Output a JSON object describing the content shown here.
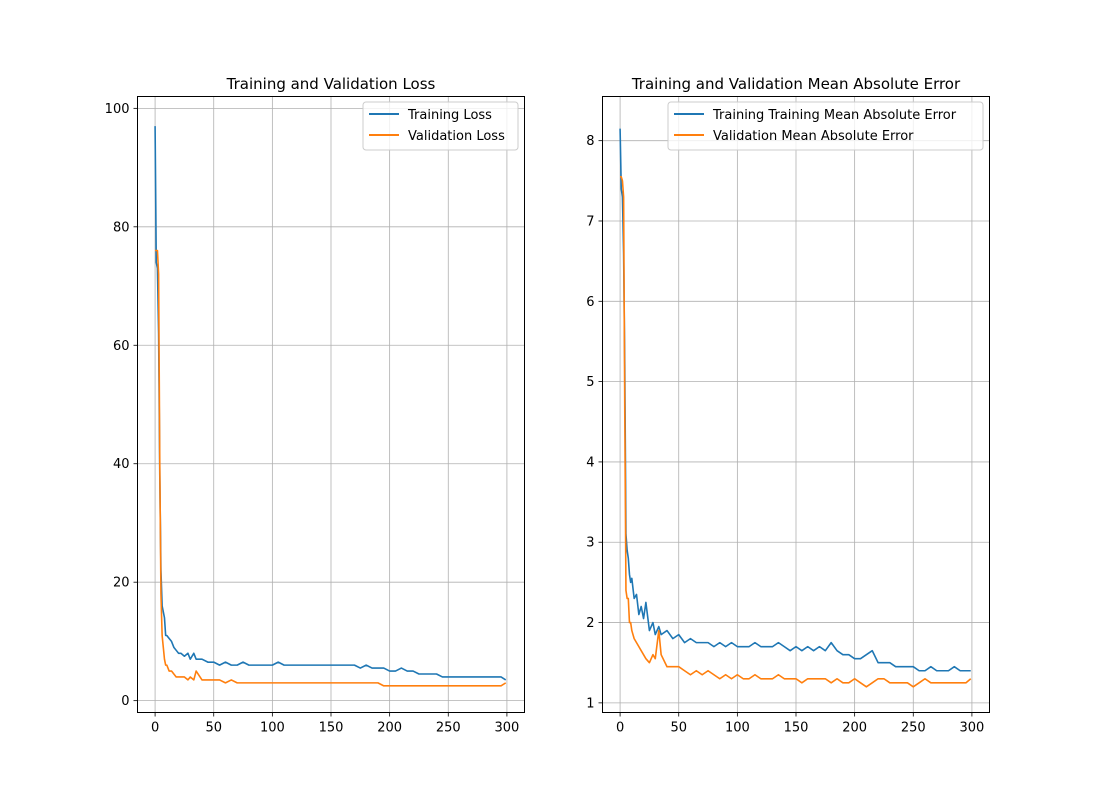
{
  "chart_data": [
    {
      "type": "line",
      "title": "Training and Validation Loss",
      "xlabel": "",
      "ylabel": "",
      "xlim": [
        -15,
        315
      ],
      "ylim": [
        -2,
        102
      ],
      "xticks": [
        0,
        50,
        100,
        150,
        200,
        250,
        300
      ],
      "yticks": [
        0,
        20,
        40,
        60,
        80,
        100
      ],
      "grid": true,
      "legend_position": "top-right",
      "series": [
        {
          "name": "Training Loss",
          "color": "#1f77b4",
          "x": [
            0,
            1,
            2,
            3,
            4,
            5,
            6,
            7,
            8,
            9,
            10,
            12,
            14,
            16,
            18,
            20,
            22,
            25,
            28,
            30,
            33,
            35,
            40,
            45,
            50,
            55,
            60,
            65,
            70,
            75,
            80,
            85,
            90,
            95,
            100,
            105,
            110,
            115,
            120,
            125,
            130,
            135,
            140,
            145,
            150,
            155,
            160,
            165,
            170,
            175,
            180,
            185,
            190,
            195,
            200,
            205,
            210,
            215,
            220,
            225,
            230,
            235,
            240,
            245,
            250,
            255,
            260,
            265,
            270,
            275,
            280,
            285,
            290,
            295,
            299
          ],
          "y": [
            97,
            74,
            73,
            62,
            38,
            22,
            16,
            15,
            14,
            11,
            11,
            10.5,
            10,
            9,
            8.5,
            8,
            8,
            7.5,
            8,
            7,
            8,
            7,
            7,
            6.5,
            6.5,
            6,
            6.5,
            6,
            6,
            6.5,
            6,
            6,
            6,
            6,
            6,
            6.5,
            6,
            6,
            6,
            6,
            6,
            6,
            6,
            6,
            6,
            6,
            6,
            6,
            6,
            5.5,
            6,
            5.5,
            5.5,
            5.5,
            5,
            5,
            5.5,
            5,
            5,
            4.5,
            4.5,
            4.5,
            4.5,
            4,
            4,
            4,
            4,
            4,
            4,
            4,
            4,
            4,
            4,
            4,
            3.5
          ]
        },
        {
          "name": "Validation Loss",
          "color": "#ff7f0e",
          "x": [
            0,
            1,
            2,
            3,
            4,
            5,
            6,
            7,
            8,
            9,
            10,
            12,
            14,
            16,
            18,
            20,
            22,
            25,
            28,
            30,
            33,
            35,
            40,
            45,
            50,
            55,
            60,
            65,
            70,
            75,
            80,
            85,
            90,
            95,
            100,
            105,
            110,
            115,
            120,
            125,
            130,
            135,
            140,
            145,
            150,
            155,
            160,
            165,
            170,
            175,
            180,
            185,
            190,
            195,
            200,
            205,
            210,
            215,
            220,
            225,
            230,
            235,
            240,
            245,
            250,
            255,
            260,
            265,
            270,
            275,
            280,
            285,
            290,
            295,
            299
          ],
          "y": [
            76,
            76,
            76,
            72,
            40,
            18,
            11,
            9,
            7,
            6,
            6,
            5,
            5,
            4.5,
            4,
            4,
            4,
            4,
            3.5,
            4,
            3.5,
            5,
            3.5,
            3.5,
            3.5,
            3.5,
            3,
            3.5,
            3,
            3,
            3,
            3,
            3,
            3,
            3,
            3,
            3,
            3,
            3,
            3,
            3,
            3,
            3,
            3,
            3,
            3,
            3,
            3,
            3,
            3,
            3,
            3,
            3,
            2.5,
            2.5,
            2.5,
            2.5,
            2.5,
            2.5,
            2.5,
            2.5,
            2.5,
            2.5,
            2.5,
            2.5,
            2.5,
            2.5,
            2.5,
            2.5,
            2.5,
            2.5,
            2.5,
            2.5,
            2.5,
            3
          ]
        }
      ]
    },
    {
      "type": "line",
      "title": "Training and Validation Mean Absolute Error",
      "xlabel": "",
      "ylabel": "",
      "xlim": [
        -15,
        315
      ],
      "ylim": [
        0.88,
        8.55
      ],
      "xticks": [
        0,
        50,
        100,
        150,
        200,
        250,
        300
      ],
      "yticks": [
        1,
        2,
        3,
        4,
        5,
        6,
        7,
        8
      ],
      "grid": true,
      "legend_position": "top-right",
      "series": [
        {
          "name": "Training Training Mean Absolute Error",
          "color": "#1f77b4",
          "x": [
            0,
            1,
            2,
            3,
            4,
            5,
            6,
            7,
            8,
            9,
            10,
            12,
            14,
            16,
            18,
            20,
            22,
            25,
            28,
            30,
            33,
            35,
            40,
            45,
            50,
            55,
            60,
            65,
            70,
            75,
            80,
            85,
            90,
            95,
            100,
            105,
            110,
            115,
            120,
            125,
            130,
            135,
            140,
            145,
            150,
            155,
            160,
            165,
            170,
            175,
            180,
            185,
            190,
            195,
            200,
            205,
            210,
            215,
            220,
            225,
            230,
            235,
            240,
            245,
            250,
            255,
            260,
            265,
            270,
            275,
            280,
            285,
            290,
            295,
            299
          ],
          "y": [
            8.15,
            7.4,
            7.3,
            6.6,
            5.2,
            3.1,
            2.9,
            2.8,
            2.6,
            2.5,
            2.55,
            2.3,
            2.35,
            2.1,
            2.2,
            2.05,
            2.25,
            1.9,
            2.0,
            1.85,
            1.95,
            1.85,
            1.9,
            1.8,
            1.85,
            1.75,
            1.8,
            1.75,
            1.75,
            1.75,
            1.7,
            1.75,
            1.7,
            1.75,
            1.7,
            1.7,
            1.7,
            1.75,
            1.7,
            1.7,
            1.7,
            1.75,
            1.7,
            1.65,
            1.7,
            1.65,
            1.7,
            1.65,
            1.7,
            1.65,
            1.75,
            1.65,
            1.6,
            1.6,
            1.55,
            1.55,
            1.6,
            1.65,
            1.5,
            1.5,
            1.5,
            1.45,
            1.45,
            1.45,
            1.45,
            1.4,
            1.4,
            1.45,
            1.4,
            1.4,
            1.4,
            1.45,
            1.4,
            1.4,
            1.4
          ]
        },
        {
          "name": "Validation Mean Absolute Error",
          "color": "#ff7f0e",
          "x": [
            0,
            1,
            2,
            3,
            4,
            5,
            6,
            7,
            8,
            9,
            10,
            12,
            14,
            16,
            18,
            20,
            22,
            25,
            28,
            30,
            33,
            35,
            40,
            45,
            50,
            55,
            60,
            65,
            70,
            75,
            80,
            85,
            90,
            95,
            100,
            105,
            110,
            115,
            120,
            125,
            130,
            135,
            140,
            145,
            150,
            155,
            160,
            165,
            170,
            175,
            180,
            185,
            190,
            195,
            200,
            205,
            210,
            215,
            220,
            225,
            230,
            235,
            240,
            245,
            250,
            255,
            260,
            265,
            270,
            275,
            280,
            285,
            290,
            295,
            299
          ],
          "y": [
            7.55,
            7.55,
            7.5,
            7.3,
            4.6,
            2.4,
            2.3,
            2.3,
            2.0,
            2.0,
            1.9,
            1.8,
            1.75,
            1.7,
            1.65,
            1.6,
            1.55,
            1.5,
            1.6,
            1.55,
            1.9,
            1.6,
            1.45,
            1.45,
            1.45,
            1.4,
            1.35,
            1.4,
            1.35,
            1.4,
            1.35,
            1.3,
            1.35,
            1.3,
            1.35,
            1.3,
            1.3,
            1.35,
            1.3,
            1.3,
            1.3,
            1.35,
            1.3,
            1.3,
            1.3,
            1.25,
            1.3,
            1.3,
            1.3,
            1.3,
            1.25,
            1.3,
            1.25,
            1.25,
            1.3,
            1.25,
            1.2,
            1.25,
            1.3,
            1.3,
            1.25,
            1.25,
            1.25,
            1.25,
            1.2,
            1.25,
            1.3,
            1.25,
            1.25,
            1.25,
            1.25,
            1.25,
            1.25,
            1.25,
            1.3
          ]
        }
      ]
    }
  ]
}
